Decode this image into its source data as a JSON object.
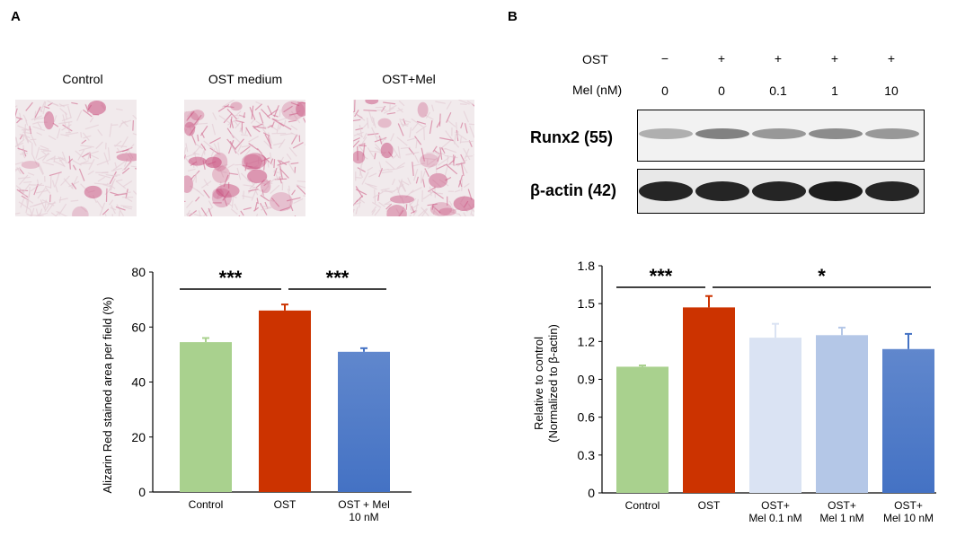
{
  "panel_a": {
    "letter": "A",
    "images": [
      {
        "label": "Control",
        "density": 0.25
      },
      {
        "label": "OST medium",
        "density": 0.85
      },
      {
        "label": "OST+Mel",
        "density": 0.55
      }
    ]
  },
  "panel_b": {
    "letter": "B",
    "row1_label": "OST",
    "row1_values": [
      "−",
      "+",
      "+",
      "+",
      "+"
    ],
    "row2_label": "Mel (nM)",
    "row2_values": [
      "0",
      "0",
      "0.1",
      "1",
      "10"
    ],
    "blots": [
      {
        "label": "Runx2 (55)",
        "intensity": [
          0.35,
          0.55,
          0.45,
          0.5,
          0.45
        ]
      },
      {
        "label": "β-actin (42)",
        "intensity": [
          0.95,
          0.95,
          0.95,
          0.98,
          0.95
        ]
      }
    ]
  },
  "chart_data": [
    {
      "type": "bar",
      "categories": [
        "Control",
        "OST",
        "OST + Mel\n10 nM"
      ],
      "values": [
        54.5,
        66,
        51
      ],
      "errors": [
        1.5,
        2.2,
        1.3
      ],
      "colors": [
        "#a9d18e",
        "#cc3300",
        "#4472c4"
      ],
      "ylabel": "Alizarin Red stained area per field (%)",
      "ylim": [
        0,
        80
      ],
      "yticks": [
        "0",
        "20",
        "40",
        "60",
        "80"
      ],
      "significance": [
        {
          "from": 0,
          "to": 1,
          "label": "***"
        },
        {
          "from": 1,
          "to": 2,
          "label": "***"
        }
      ]
    },
    {
      "type": "bar",
      "categories": [
        "Control",
        "OST",
        "OST+\nMel 0.1 nM",
        "OST+\nMel 1 nM",
        "OST+\nMel 10 nM"
      ],
      "values": [
        1.0,
        1.47,
        1.23,
        1.25,
        1.14
      ],
      "errors": [
        0.01,
        0.09,
        0.11,
        0.06,
        0.12
      ],
      "colors": [
        "#a9d18e",
        "#cc3300",
        "#dae3f3",
        "#b4c7e7",
        "#4472c4"
      ],
      "ylabel": "Relative to control\n(Normalized to β-actin)",
      "ylim": [
        0,
        1.8
      ],
      "yticks": [
        "0",
        "0.3",
        "0.6",
        "0.9",
        "1.2",
        "1.5",
        "1.8"
      ],
      "significance": [
        {
          "from": 0,
          "to": 1,
          "label": "***"
        },
        {
          "from": 1,
          "to": 4,
          "label": "*"
        }
      ]
    }
  ]
}
